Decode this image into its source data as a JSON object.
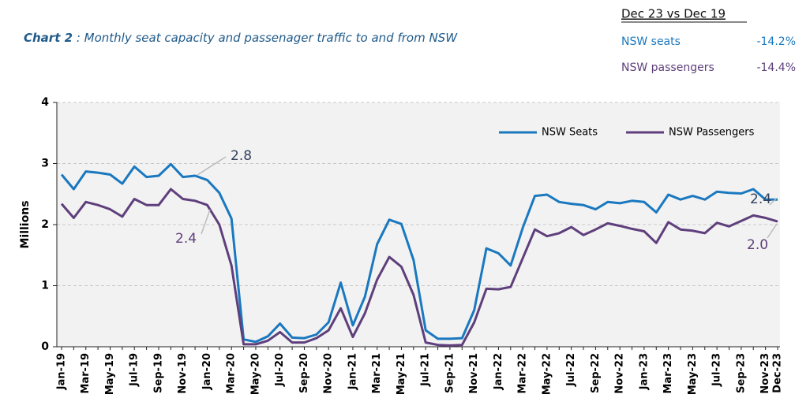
{
  "chart_data": {
    "type": "line",
    "title_prefix": "Chart 2",
    "title": " : Monthly seat capacity and passenager traffic to and from NSW",
    "summary": {
      "heading": "Dec 23 vs Dec 19",
      "rows": [
        [
          "NSW seats",
          "-14.2%"
        ],
        [
          "NSW passengers",
          "-14.4%"
        ]
      ]
    },
    "ylabel": "Millions",
    "categories": [
      "Jan-19",
      null,
      "Mar-19",
      null,
      "May-19",
      null,
      "Jul-19",
      null,
      "Sep-19",
      null,
      "Nov-19",
      null,
      "Jan-20",
      null,
      "Mar-20",
      null,
      "May-20",
      null,
      "Jul-20",
      null,
      "Sep-20",
      null,
      "Nov-20",
      null,
      "Jan-21",
      null,
      "Mar-21",
      null,
      "May-21",
      null,
      "Jul-21",
      null,
      "Sep-21",
      null,
      "Nov-21",
      null,
      "Jan-22",
      null,
      "Mar-22",
      null,
      "May-22",
      null,
      "Jul-22",
      null,
      "Sep-22",
      null,
      "Nov-22",
      null,
      "Jan-23",
      null,
      "Mar-23",
      null,
      "May-23",
      null,
      "Jul-23",
      null,
      "Sep-23",
      null,
      "Nov-23",
      "Dec-23"
    ],
    "series": [
      {
        "name": "NSW Seats",
        "color": "#1a78bf",
        "values": [
          2.82,
          2.58,
          2.87,
          2.85,
          2.82,
          2.67,
          2.95,
          2.78,
          2.8,
          2.99,
          2.78,
          2.8,
          2.73,
          2.52,
          2.1,
          0.12,
          0.08,
          0.17,
          0.38,
          0.15,
          0.14,
          0.2,
          0.4,
          1.05,
          0.35,
          0.82,
          1.68,
          2.08,
          2.01,
          1.42,
          0.27,
          0.13,
          0.13,
          0.14,
          0.6,
          1.61,
          1.53,
          1.33,
          1.95,
          2.47,
          2.49,
          2.37,
          2.34,
          2.32,
          2.25,
          2.37,
          2.35,
          2.39,
          2.37,
          2.2,
          2.49,
          2.41,
          2.47,
          2.41,
          2.54,
          2.52,
          2.51,
          2.58,
          2.41,
          2.41
        ]
      },
      {
        "name": "NSW Passengers",
        "color": "#5e3f7c",
        "values": [
          2.34,
          2.11,
          2.37,
          2.32,
          2.25,
          2.13,
          2.42,
          2.32,
          2.32,
          2.58,
          2.42,
          2.39,
          2.32,
          2.0,
          1.33,
          0.04,
          0.04,
          0.1,
          0.24,
          0.07,
          0.07,
          0.14,
          0.27,
          0.63,
          0.16,
          0.55,
          1.1,
          1.47,
          1.31,
          0.85,
          0.07,
          0.03,
          0.02,
          0.03,
          0.4,
          0.95,
          0.94,
          0.98,
          1.45,
          1.92,
          1.81,
          1.86,
          1.96,
          1.83,
          1.92,
          2.02,
          1.98,
          1.93,
          1.89,
          1.7,
          2.04,
          1.92,
          1.9,
          1.86,
          2.03,
          1.97,
          2.06,
          2.15,
          2.11,
          2.05
        ]
      }
    ],
    "annotations": [
      {
        "text": "2.8",
        "color": "#33415c"
      },
      {
        "text": "2.4",
        "color": "#5e3f7c"
      },
      {
        "text": "2.4",
        "color": "#33415c"
      },
      {
        "text": "2.0",
        "color": "#5e3f7c"
      }
    ],
    "ylim": [
      0,
      4
    ],
    "yticks": [
      0,
      1,
      2,
      3,
      4
    ],
    "grid": true,
    "legend": "top-right"
  }
}
